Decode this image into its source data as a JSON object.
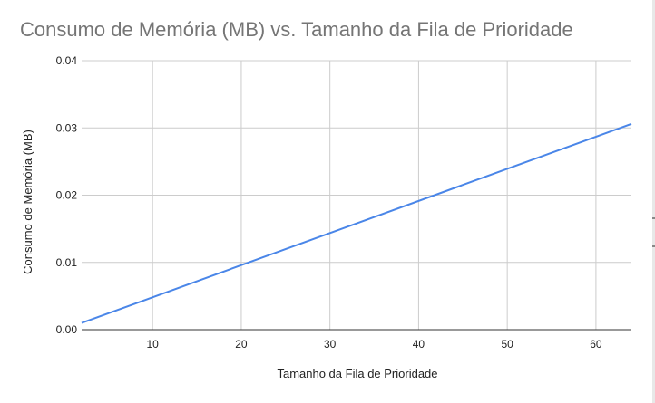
{
  "chart_data": {
    "type": "line",
    "title": "Consumo de Memória (MB) vs. Tamanho da Fila de Prioridade",
    "xlabel": "Tamanho da Fila de Prioridade",
    "ylabel": "Consumo de Memória (MB)",
    "xlim": [
      2,
      64
    ],
    "ylim": [
      0,
      0.04
    ],
    "x_ticks": [
      10,
      20,
      30,
      40,
      50,
      60
    ],
    "y_ticks": [
      "0.00",
      "0.01",
      "0.02",
      "0.03",
      "0.04"
    ],
    "grid": true,
    "legend": "none",
    "series": [
      {
        "color": "#4a86e8",
        "x": [
          2,
          64
        ],
        "y": [
          0.001,
          0.0306
        ]
      }
    ]
  }
}
